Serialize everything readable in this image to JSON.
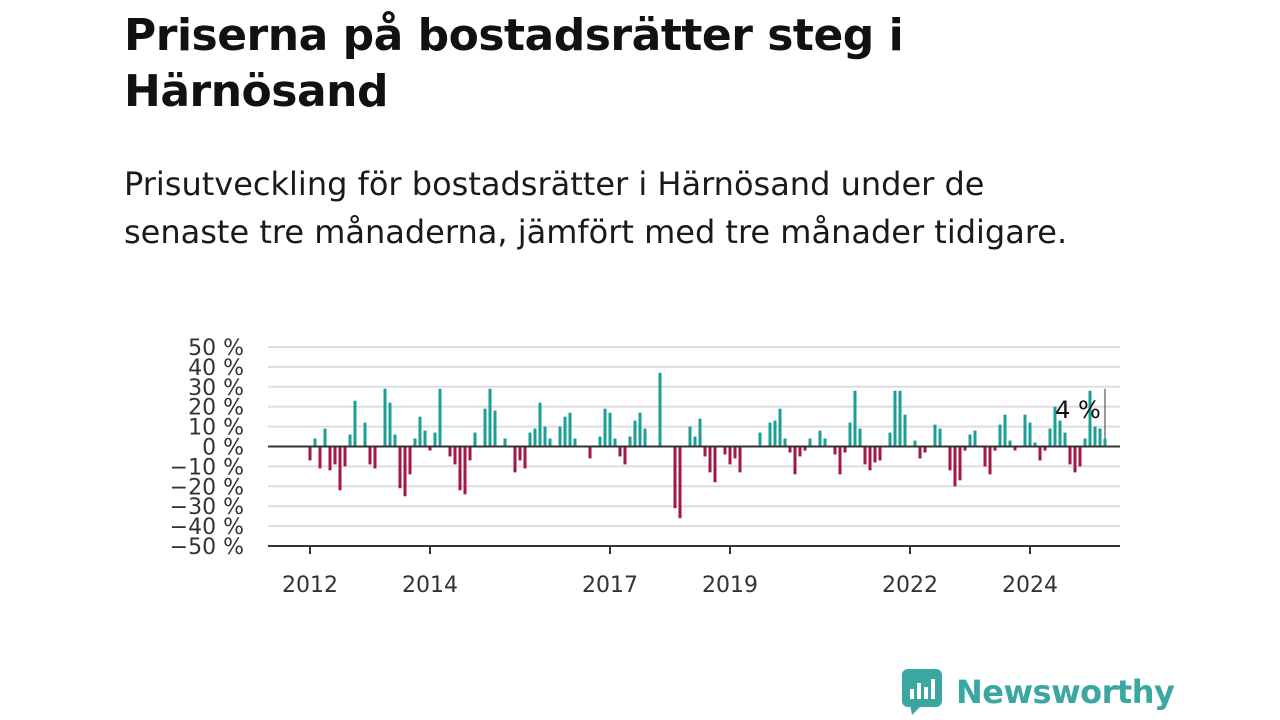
{
  "title": "Priserna på bostadsrätter steg i Härnösand",
  "subtitle": "Prisutveckling för bostadsrätter i Härnösand under de senaste tre månaderna, jämfört med tre månader tidigare.",
  "brand": {
    "name": "Newsworthy",
    "color": "#3aa7a0"
  },
  "colors": {
    "positive": "#1a9e96",
    "negative": "#a3164a",
    "grid": "#dddddd",
    "axis": "#333333"
  },
  "chart_data": {
    "type": "bar",
    "x_start": "2012-01",
    "frequency": "monthly",
    "ylim": [
      -50,
      50
    ],
    "y_ticks": [
      50,
      40,
      30,
      20,
      10,
      0,
      -10,
      -20,
      -30,
      -40,
      -50
    ],
    "y_tick_labels": [
      "50 %",
      "40 %",
      "30 %",
      "20 %",
      "10 %",
      "0 %",
      "−10 %",
      "−20 %",
      "−30 %",
      "−40 %",
      "−50 %"
    ],
    "x_tick_labels": [
      {
        "label": "2012",
        "date": "2012-01"
      },
      {
        "label": "2014",
        "date": "2014-01"
      },
      {
        "label": "2017",
        "date": "2017-01"
      },
      {
        "label": "2019",
        "date": "2019-01"
      },
      {
        "label": "2022",
        "date": "2022-01"
      },
      {
        "label": "2024",
        "date": "2024-01"
      }
    ],
    "values": [
      -7,
      4,
      -11,
      9,
      -12,
      -9,
      -22,
      -10,
      6,
      23,
      0,
      12,
      -9,
      -11,
      0,
      29,
      22,
      6,
      -21,
      -25,
      -14,
      4,
      15,
      8,
      -2,
      7,
      29,
      0,
      -5,
      -9,
      -22,
      -24,
      -7,
      7,
      0,
      19,
      29,
      18,
      0,
      4,
      0,
      -13,
      -7,
      -11,
      7,
      9,
      22,
      10,
      4,
      0,
      10,
      15,
      17,
      4,
      0,
      0,
      -6,
      0,
      5,
      19,
      17,
      4,
      -5,
      -9,
      5,
      13,
      17,
      9,
      0,
      0,
      37,
      0,
      0,
      -31,
      -36,
      0,
      10,
      5,
      14,
      -5,
      -13,
      -18,
      0,
      -4,
      -9,
      -6,
      -13,
      0,
      0,
      0,
      7,
      0,
      12,
      13,
      19,
      4,
      -3,
      -14,
      -5,
      -2,
      4,
      0,
      8,
      4,
      0,
      -4,
      -14,
      -3,
      12,
      28,
      9,
      -9,
      -12,
      -8,
      -7,
      0,
      7,
      28,
      28,
      16,
      0,
      3,
      -6,
      -3,
      0,
      11,
      9,
      0,
      -12,
      -20,
      -17,
      -2,
      6,
      8,
      0,
      -10,
      -14,
      -2,
      11,
      16,
      3,
      -2,
      0,
      16,
      12,
      2,
      -7,
      -2,
      9,
      20,
      13,
      7,
      -9,
      -13,
      -10,
      4,
      28,
      10,
      9,
      4
    ],
    "annotation": {
      "text": "4 %",
      "value": 4,
      "date": "2025-04"
    }
  }
}
